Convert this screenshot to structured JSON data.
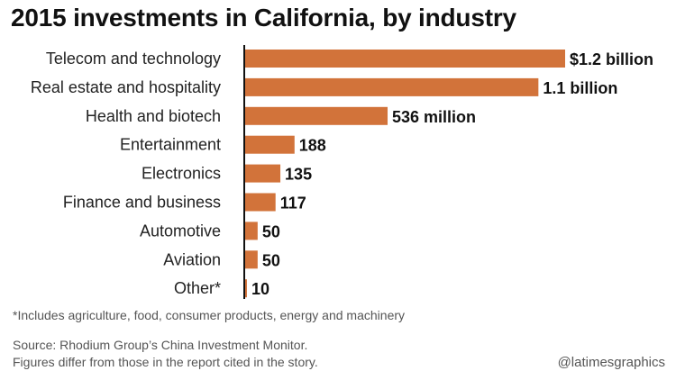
{
  "chart_data": {
    "type": "bar",
    "orientation": "horizontal",
    "title": "2015 investments in California, by industry",
    "categories": [
      "Telecom and technology",
      "Real estate and hospitality",
      "Health and biotech",
      "Entertainment",
      "Electronics",
      "Finance and business",
      "Automotive",
      "Aviation",
      "Other*"
    ],
    "values": [
      1200,
      1100,
      536,
      188,
      135,
      117,
      50,
      50,
      10
    ],
    "value_labels": [
      "$1.2 billion",
      "1.1 billion",
      "536 million",
      "188",
      "135",
      "117",
      "50",
      "50",
      "10"
    ],
    "unit": "million USD",
    "xlim": [
      0,
      1200
    ],
    "grid": false,
    "bar_color": "#D2733A"
  },
  "footnote": "*Includes agriculture, food, consumer products, energy and machinery",
  "source_line1": "Source: Rhodium Group’s China Investment Monitor.",
  "source_line2": "Figures differ from those in the report cited in the story.",
  "credit": "@latimesgraphics"
}
